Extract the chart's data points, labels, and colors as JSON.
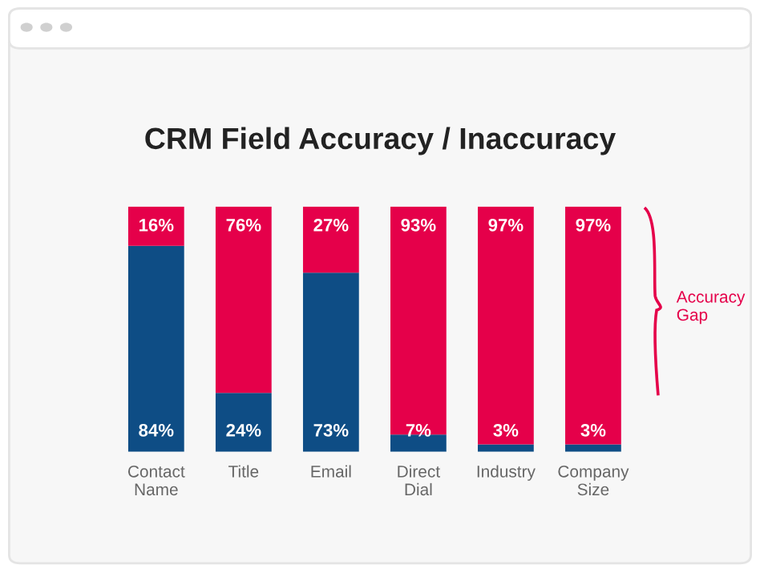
{
  "chart_data": {
    "type": "bar",
    "title": "CRM Field Accuracy / Inaccuracy",
    "stacked": true,
    "categories": [
      "Contact Name",
      "Title",
      "Email",
      "Direct Dial",
      "Industry",
      "Company Size"
    ],
    "series": [
      {
        "color": "#0e4d85",
        "values": [
          84,
          24,
          73,
          7,
          3,
          3
        ],
        "value_labels": [
          "84%",
          "24%",
          "73%",
          "7%",
          "3%",
          "3%"
        ]
      },
      {
        "color": "#e5004a",
        "values": [
          16,
          76,
          27,
          93,
          97,
          97
        ],
        "value_labels": [
          "16%",
          "76%",
          "27%",
          "93%",
          "97%",
          "97%"
        ]
      }
    ],
    "annotations": [
      "Accuracy Gap"
    ],
    "ylim": [
      0,
      100
    ],
    "tick_labels": "x",
    "grid": false,
    "legend": false
  }
}
